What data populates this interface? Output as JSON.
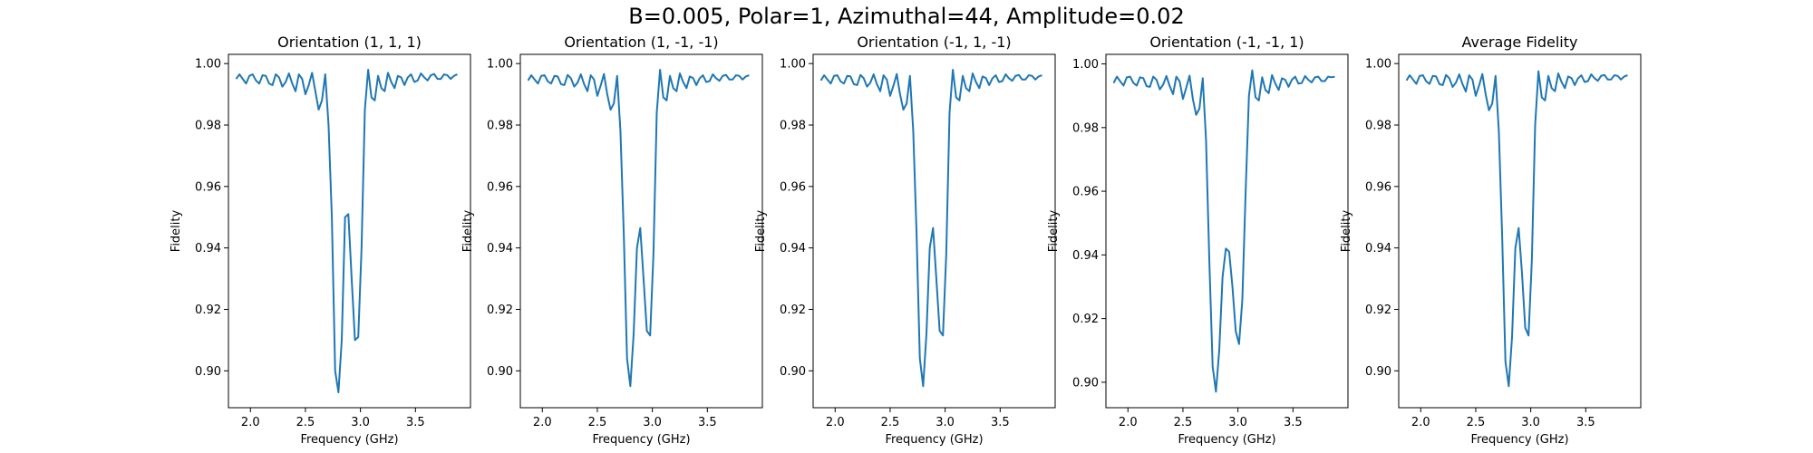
{
  "figure": {
    "suptitle": "B=0.005, Polar=1, Azimuthal=44, Amplitude=0.02"
  },
  "style": {
    "line_color": "#1f77b4",
    "axis_color": "#000000",
    "background": "#ffffff"
  },
  "chart_data": [
    {
      "type": "line",
      "title": "Orientation (1, 1, 1)",
      "xlabel": "Frequency (GHz)",
      "ylabel": "Fidelity",
      "xlim": [
        1.8,
        4.0
      ],
      "ylim": [
        0.888,
        1.003
      ],
      "xticks": [
        2.0,
        2.5,
        3.0,
        3.5
      ],
      "xtick_labels": [
        "2.0",
        "2.5",
        "3.0",
        "3.5"
      ],
      "yticks": [
        0.9,
        0.92,
        0.94,
        0.96,
        0.98,
        1.0
      ],
      "ytick_labels": [
        "0.90",
        "0.92",
        "0.94",
        "0.96",
        "0.98",
        "1.00"
      ],
      "grid": false,
      "series": [
        {
          "x": [
            1.87,
            1.9,
            1.93,
            1.96,
            1.99,
            2.02,
            2.05,
            2.08,
            2.11,
            2.14,
            2.17,
            2.2,
            2.23,
            2.26,
            2.29,
            2.32,
            2.35,
            2.38,
            2.41,
            2.44,
            2.47,
            2.5,
            2.53,
            2.56,
            2.59,
            2.62,
            2.65,
            2.68,
            2.71,
            2.74,
            2.77,
            2.8,
            2.83,
            2.86,
            2.89,
            2.92,
            2.95,
            2.98,
            3.01,
            3.04,
            3.07,
            3.1,
            3.13,
            3.16,
            3.19,
            3.22,
            3.25,
            3.28,
            3.31,
            3.34,
            3.37,
            3.4,
            3.43,
            3.46,
            3.49,
            3.52,
            3.55,
            3.58,
            3.61,
            3.64,
            3.67,
            3.7,
            3.73,
            3.76,
            3.79,
            3.82,
            3.85,
            3.88
          ],
          "y": [
            0.995,
            0.9965,
            0.995,
            0.9935,
            0.996,
            0.9965,
            0.9945,
            0.9935,
            0.9962,
            0.996,
            0.9935,
            0.993,
            0.9965,
            0.9955,
            0.9925,
            0.994,
            0.9968,
            0.9935,
            0.991,
            0.9965,
            0.995,
            0.99,
            0.993,
            0.997,
            0.991,
            0.985,
            0.988,
            0.9965,
            0.98,
            0.95,
            0.9,
            0.893,
            0.91,
            0.95,
            0.951,
            0.93,
            0.91,
            0.911,
            0.94,
            0.985,
            0.998,
            0.989,
            0.988,
            0.996,
            0.992,
            0.991,
            0.997,
            0.994,
            0.992,
            0.996,
            0.9955,
            0.993,
            0.9955,
            0.9965,
            0.994,
            0.9945,
            0.9968,
            0.9955,
            0.9945,
            0.9962,
            0.9966,
            0.995,
            0.995,
            0.9965,
            0.9962,
            0.995,
            0.996,
            0.9965
          ]
        }
      ]
    },
    {
      "type": "line",
      "title": "Orientation (1, -1, -1)",
      "xlabel": "Frequency (GHz)",
      "ylabel": "Fidelity",
      "xlim": [
        1.8,
        4.0
      ],
      "ylim": [
        0.888,
        1.003
      ],
      "xticks": [
        2.0,
        2.5,
        3.0,
        3.5
      ],
      "xtick_labels": [
        "2.0",
        "2.5",
        "3.0",
        "3.5"
      ],
      "yticks": [
        0.9,
        0.92,
        0.94,
        0.96,
        0.98,
        1.0
      ],
      "ytick_labels": [
        "0.90",
        "0.92",
        "0.94",
        "0.96",
        "0.98",
        "1.00"
      ],
      "grid": false,
      "series": [
        {
          "x": [
            1.87,
            1.9,
            1.93,
            1.96,
            1.99,
            2.02,
            2.05,
            2.08,
            2.11,
            2.14,
            2.17,
            2.2,
            2.23,
            2.26,
            2.29,
            2.32,
            2.35,
            2.38,
            2.41,
            2.44,
            2.47,
            2.5,
            2.53,
            2.56,
            2.59,
            2.62,
            2.65,
            2.68,
            2.71,
            2.74,
            2.77,
            2.8,
            2.83,
            2.86,
            2.89,
            2.92,
            2.95,
            2.98,
            3.01,
            3.04,
            3.07,
            3.1,
            3.13,
            3.16,
            3.19,
            3.22,
            3.25,
            3.28,
            3.31,
            3.34,
            3.37,
            3.4,
            3.43,
            3.46,
            3.49,
            3.52,
            3.55,
            3.58,
            3.61,
            3.64,
            3.67,
            3.7,
            3.73,
            3.76,
            3.79,
            3.82,
            3.85,
            3.88
          ],
          "y": [
            0.9945,
            0.9962,
            0.9948,
            0.9935,
            0.996,
            0.9962,
            0.9942,
            0.9935,
            0.996,
            0.9958,
            0.9933,
            0.993,
            0.9963,
            0.9952,
            0.9925,
            0.9938,
            0.9965,
            0.9933,
            0.991,
            0.9962,
            0.9948,
            0.9895,
            0.9928,
            0.9966,
            0.99,
            0.985,
            0.987,
            0.996,
            0.978,
            0.945,
            0.904,
            0.895,
            0.912,
            0.94,
            0.9465,
            0.93,
            0.913,
            0.9115,
            0.938,
            0.984,
            0.998,
            0.989,
            0.988,
            0.996,
            0.992,
            0.991,
            0.9968,
            0.994,
            0.992,
            0.9958,
            0.9953,
            0.993,
            0.9952,
            0.9962,
            0.994,
            0.9943,
            0.9965,
            0.9952,
            0.9944,
            0.996,
            0.9963,
            0.9948,
            0.9948,
            0.9962,
            0.996,
            0.9948,
            0.9958,
            0.9962
          ]
        }
      ]
    },
    {
      "type": "line",
      "title": "Orientation (-1, 1, -1)",
      "xlabel": "Frequency (GHz)",
      "ylabel": "Fidelity",
      "xlim": [
        1.8,
        4.0
      ],
      "ylim": [
        0.888,
        1.003
      ],
      "xticks": [
        2.0,
        2.5,
        3.0,
        3.5
      ],
      "xtick_labels": [
        "2.0",
        "2.5",
        "3.0",
        "3.5"
      ],
      "yticks": [
        0.9,
        0.92,
        0.94,
        0.96,
        0.98,
        1.0
      ],
      "ytick_labels": [
        "0.90",
        "0.92",
        "0.94",
        "0.96",
        "0.98",
        "1.00"
      ],
      "grid": false,
      "series": [
        {
          "x": [
            1.87,
            1.9,
            1.93,
            1.96,
            1.99,
            2.02,
            2.05,
            2.08,
            2.11,
            2.14,
            2.17,
            2.2,
            2.23,
            2.26,
            2.29,
            2.32,
            2.35,
            2.38,
            2.41,
            2.44,
            2.47,
            2.5,
            2.53,
            2.56,
            2.59,
            2.62,
            2.65,
            2.68,
            2.71,
            2.74,
            2.77,
            2.8,
            2.83,
            2.86,
            2.89,
            2.92,
            2.95,
            2.98,
            3.01,
            3.04,
            3.07,
            3.1,
            3.13,
            3.16,
            3.19,
            3.22,
            3.25,
            3.28,
            3.31,
            3.34,
            3.37,
            3.4,
            3.43,
            3.46,
            3.49,
            3.52,
            3.55,
            3.58,
            3.61,
            3.64,
            3.67,
            3.7,
            3.73,
            3.76,
            3.79,
            3.82,
            3.85,
            3.88
          ],
          "y": [
            0.9945,
            0.9962,
            0.9948,
            0.9935,
            0.996,
            0.9962,
            0.9942,
            0.9935,
            0.996,
            0.9958,
            0.9933,
            0.993,
            0.9963,
            0.9952,
            0.9925,
            0.9938,
            0.9965,
            0.9933,
            0.991,
            0.9962,
            0.9948,
            0.9895,
            0.9928,
            0.9966,
            0.99,
            0.985,
            0.987,
            0.996,
            0.978,
            0.945,
            0.904,
            0.895,
            0.912,
            0.94,
            0.9465,
            0.93,
            0.913,
            0.9115,
            0.938,
            0.984,
            0.998,
            0.989,
            0.988,
            0.996,
            0.992,
            0.991,
            0.9968,
            0.994,
            0.992,
            0.9958,
            0.9953,
            0.993,
            0.9952,
            0.9962,
            0.994,
            0.9943,
            0.9965,
            0.9952,
            0.9944,
            0.996,
            0.9963,
            0.9948,
            0.9948,
            0.9962,
            0.996,
            0.9948,
            0.9958,
            0.9962
          ]
        }
      ]
    },
    {
      "type": "line",
      "title": "Orientation (-1, -1, 1)",
      "xlabel": "Frequency (GHz)",
      "ylabel": "Fidelity",
      "xlim": [
        1.8,
        4.0
      ],
      "ylim": [
        0.892,
        1.003
      ],
      "xticks": [
        2.0,
        2.5,
        3.0,
        3.5
      ],
      "xtick_labels": [
        "2.0",
        "2.5",
        "3.0",
        "3.5"
      ],
      "yticks": [
        0.9,
        0.92,
        0.94,
        0.96,
        0.98,
        1.0
      ],
      "ytick_labels": [
        "0.90",
        "0.92",
        "0.94",
        "0.96",
        "0.98",
        "1.00"
      ],
      "grid": false,
      "series": [
        {
          "x": [
            1.87,
            1.9,
            1.93,
            1.96,
            1.99,
            2.02,
            2.05,
            2.08,
            2.11,
            2.14,
            2.17,
            2.2,
            2.23,
            2.26,
            2.29,
            2.32,
            2.35,
            2.38,
            2.41,
            2.44,
            2.47,
            2.5,
            2.53,
            2.56,
            2.59,
            2.62,
            2.65,
            2.68,
            2.71,
            2.74,
            2.77,
            2.8,
            2.83,
            2.86,
            2.89,
            2.92,
            2.95,
            2.98,
            3.01,
            3.04,
            3.07,
            3.1,
            3.13,
            3.16,
            3.19,
            3.22,
            3.25,
            3.28,
            3.31,
            3.34,
            3.37,
            3.4,
            3.43,
            3.46,
            3.49,
            3.52,
            3.55,
            3.58,
            3.61,
            3.64,
            3.67,
            3.7,
            3.73,
            3.76,
            3.79,
            3.82,
            3.85,
            3.88
          ],
          "y": [
            0.994,
            0.996,
            0.9945,
            0.9932,
            0.9958,
            0.996,
            0.994,
            0.9932,
            0.9958,
            0.9955,
            0.993,
            0.9928,
            0.996,
            0.995,
            0.992,
            0.9935,
            0.9962,
            0.993,
            0.9905,
            0.996,
            0.9945,
            0.989,
            0.9925,
            0.9963,
            0.989,
            0.984,
            0.986,
            0.9955,
            0.976,
            0.938,
            0.905,
            0.897,
            0.91,
            0.933,
            0.942,
            0.941,
            0.93,
            0.916,
            0.912,
            0.926,
            0.96,
            0.99,
            0.998,
            0.9895,
            0.9885,
            0.9958,
            0.9918,
            0.9908,
            0.9965,
            0.9938,
            0.9918,
            0.9955,
            0.995,
            0.9928,
            0.995,
            0.996,
            0.9938,
            0.994,
            0.9962,
            0.995,
            0.9942,
            0.9958,
            0.996,
            0.9946,
            0.9946,
            0.996,
            0.9958,
            0.996
          ]
        }
      ]
    },
    {
      "type": "line",
      "title": "Average Fidelity",
      "xlabel": "Frequency (GHz)",
      "ylabel": "Fidelity",
      "xlim": [
        1.8,
        4.0
      ],
      "ylim": [
        0.888,
        1.003
      ],
      "xticks": [
        2.0,
        2.5,
        3.0,
        3.5
      ],
      "xtick_labels": [
        "2.0",
        "2.5",
        "3.0",
        "3.5"
      ],
      "yticks": [
        0.9,
        0.92,
        0.94,
        0.96,
        0.98,
        1.0
      ],
      "ytick_labels": [
        "0.90",
        "0.92",
        "0.94",
        "0.96",
        "0.98",
        "1.00"
      ],
      "grid": false,
      "series": [
        {
          "x": [
            1.87,
            1.9,
            1.93,
            1.96,
            1.99,
            2.02,
            2.05,
            2.08,
            2.11,
            2.14,
            2.17,
            2.2,
            2.23,
            2.26,
            2.29,
            2.32,
            2.35,
            2.38,
            2.41,
            2.44,
            2.47,
            2.5,
            2.53,
            2.56,
            2.59,
            2.62,
            2.65,
            2.68,
            2.71,
            2.74,
            2.77,
            2.8,
            2.83,
            2.86,
            2.89,
            2.92,
            2.95,
            2.98,
            3.01,
            3.04,
            3.07,
            3.1,
            3.13,
            3.16,
            3.19,
            3.22,
            3.25,
            3.28,
            3.31,
            3.34,
            3.37,
            3.4,
            3.43,
            3.46,
            3.49,
            3.52,
            3.55,
            3.58,
            3.61,
            3.64,
            3.67,
            3.7,
            3.73,
            3.76,
            3.79,
            3.82,
            3.85,
            3.88
          ],
          "y": [
            0.9945,
            0.9962,
            0.9948,
            0.9934,
            0.996,
            0.9962,
            0.9942,
            0.9934,
            0.996,
            0.9958,
            0.9933,
            0.993,
            0.9963,
            0.9952,
            0.9924,
            0.9938,
            0.9965,
            0.9933,
            0.9909,
            0.9962,
            0.9948,
            0.9895,
            0.9928,
            0.9966,
            0.99,
            0.9848,
            0.987,
            0.996,
            0.978,
            0.944,
            0.903,
            0.895,
            0.911,
            0.94,
            0.9465,
            0.932,
            0.914,
            0.9115,
            0.936,
            0.98,
            0.9975,
            0.989,
            0.988,
            0.996,
            0.992,
            0.991,
            0.9968,
            0.994,
            0.992,
            0.9958,
            0.9953,
            0.993,
            0.9952,
            0.9962,
            0.994,
            0.9943,
            0.9965,
            0.9952,
            0.9944,
            0.996,
            0.9963,
            0.9948,
            0.9948,
            0.9962,
            0.996,
            0.9948,
            0.9958,
            0.9962
          ]
        }
      ]
    }
  ]
}
